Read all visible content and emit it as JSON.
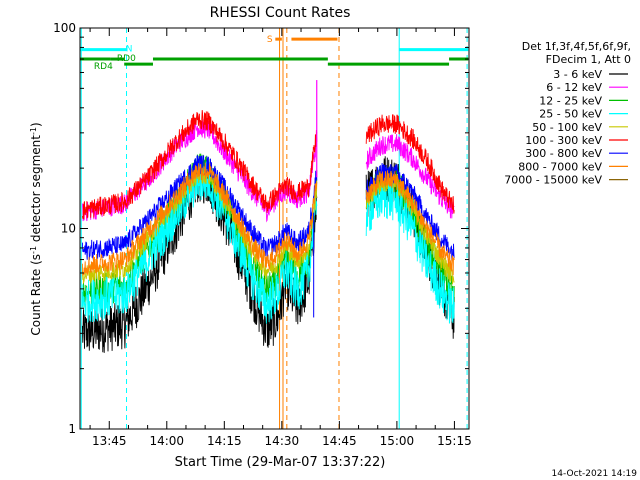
{
  "chart_data": {
    "type": "line",
    "title": "RHESSI Count Rates",
    "xlabel": "Start Time (29-Mar-07 13:37:22)",
    "ylabel": "Count Rate (s⁻¹ detector segment⁻¹)",
    "ylabel_main": "Count Rate (s",
    "ylabel_sup1": "-1",
    "ylabel_mid": " detector segment",
    "ylabel_sup2": "-1",
    "ylabel_end": ")",
    "y_scale": "log",
    "ylim": [
      1,
      100
    ],
    "xlim_minutes": [
      37.37,
      138.8
    ],
    "x_ticks": [
      {
        "label": "13:45",
        "minutes": 45
      },
      {
        "label": "14:00",
        "minutes": 60
      },
      {
        "label": "14:15",
        "minutes": 75
      },
      {
        "label": "14:30",
        "minutes": 90
      },
      {
        "label": "14:45",
        "minutes": 105
      },
      {
        "label": "15:00",
        "minutes": 120
      },
      {
        "label": "15:15",
        "minutes": 135
      }
    ],
    "y_ticks": [
      {
        "label": "1",
        "value": 1
      },
      {
        "label": "10",
        "value": 10
      },
      {
        "label": "100",
        "value": 100
      }
    ],
    "grid": false,
    "legend_position": "right",
    "legend_header": [
      "Det 1f,3f,4f,5f,6f,9f,",
      "FDecim 1, Att 0"
    ],
    "series": [
      {
        "name": "3 - 6 keV",
        "color": "#000000",
        "knots": [
          [
            38,
            3.0
          ],
          [
            49,
            3.3
          ],
          [
            55,
            5.2
          ],
          [
            62,
            9.6
          ],
          [
            68,
            17.5
          ],
          [
            71,
            17.2
          ],
          [
            76,
            10.2
          ],
          [
            82,
            4.9
          ],
          [
            86,
            3.1
          ],
          [
            89,
            3.6
          ],
          [
            91,
            5.4
          ],
          [
            94,
            4.0
          ],
          [
            97,
            5.5
          ],
          [
            99.2,
            14.0
          ]
        ],
        "knots2": [
          [
            112,
            14.5
          ],
          [
            116,
            18.2
          ],
          [
            120,
            17.5
          ],
          [
            124,
            12.4
          ],
          [
            128,
            7.5
          ],
          [
            132,
            4.9
          ],
          [
            135,
            3.5
          ]
        ]
      },
      {
        "name": "6 - 12 keV",
        "color": "#ff00ff",
        "knots": [
          [
            38,
            12.0
          ],
          [
            49,
            13.3
          ],
          [
            55,
            17.3
          ],
          [
            62,
            25.3
          ],
          [
            68,
            32.0
          ],
          [
            71,
            31.0
          ],
          [
            76,
            22.6
          ],
          [
            82,
            15.5
          ],
          [
            86,
            12.2
          ],
          [
            89,
            14.2
          ],
          [
            91,
            15.5
          ],
          [
            94,
            14.0
          ],
          [
            97,
            15.2
          ],
          [
            99.2,
            28.0
          ]
        ],
        "knots2": [
          [
            112,
            21.7
          ],
          [
            116,
            26.2
          ],
          [
            120,
            26.5
          ],
          [
            124,
            22.5
          ],
          [
            128,
            17.5
          ],
          [
            132,
            13.7
          ],
          [
            135,
            12.0
          ]
        ]
      },
      {
        "name": "12 - 25 keV",
        "color": "#00c000",
        "knots": [
          [
            38,
            4.8
          ],
          [
            49,
            5.2
          ],
          [
            55,
            7.9
          ],
          [
            62,
            12.6
          ],
          [
            68,
            20.0
          ],
          [
            71,
            19.8
          ],
          [
            76,
            12.6
          ],
          [
            82,
            6.7
          ],
          [
            86,
            4.9
          ],
          [
            89,
            5.6
          ],
          [
            91,
            7.4
          ],
          [
            94,
            5.8
          ],
          [
            97,
            7.0
          ],
          [
            99.2,
            17.0
          ]
        ],
        "knots2": [
          [
            112,
            13.6
          ],
          [
            116,
            17.3
          ],
          [
            120,
            16.8
          ],
          [
            124,
            12.2
          ],
          [
            128,
            8.2
          ],
          [
            132,
            5.8
          ],
          [
            135,
            4.7
          ]
        ]
      },
      {
        "name": "25 - 50 keV",
        "color": "#00ffff",
        "knots": [
          [
            38,
            4.3
          ],
          [
            49,
            4.7
          ],
          [
            55,
            7.1
          ],
          [
            62,
            11.5
          ],
          [
            68,
            17.4
          ],
          [
            71,
            17.2
          ],
          [
            76,
            11.0
          ],
          [
            82,
            5.8
          ],
          [
            86,
            4.2
          ],
          [
            89,
            4.8
          ],
          [
            91,
            6.3
          ],
          [
            94,
            4.9
          ],
          [
            97,
            6.1
          ],
          [
            99.2,
            15.5
          ]
        ],
        "knots2": [
          [
            112,
            11.5
          ],
          [
            116,
            14.4
          ],
          [
            120,
            13.8
          ],
          [
            124,
            10.0
          ],
          [
            128,
            6.6
          ],
          [
            132,
            4.7
          ],
          [
            135,
            3.9
          ]
        ]
      },
      {
        "name": "50 - 100 keV",
        "color": "#c8c800",
        "knots": [
          [
            38,
            5.9
          ],
          [
            49,
            6.3
          ],
          [
            55,
            9.0
          ],
          [
            62,
            13.3
          ],
          [
            68,
            18.8
          ],
          [
            71,
            18.5
          ],
          [
            76,
            13.0
          ],
          [
            82,
            7.9
          ],
          [
            86,
            6.2
          ],
          [
            89,
            6.8
          ],
          [
            91,
            8.2
          ],
          [
            94,
            6.9
          ],
          [
            97,
            8.0
          ],
          [
            99.2,
            16.5
          ]
        ],
        "knots2": [
          [
            112,
            14.0
          ],
          [
            116,
            17.0
          ],
          [
            120,
            16.8
          ],
          [
            124,
            12.8
          ],
          [
            128,
            9.0
          ],
          [
            132,
            6.7
          ],
          [
            135,
            5.7
          ]
        ]
      },
      {
        "name": "100 - 300 keV",
        "color": "#ff0000",
        "knots": [
          [
            38,
            12.3
          ],
          [
            49,
            13.6
          ],
          [
            55,
            17.8
          ],
          [
            62,
            26.6
          ],
          [
            68,
            35.2
          ],
          [
            71,
            34.1
          ],
          [
            76,
            25.4
          ],
          [
            82,
            17.0
          ],
          [
            86,
            13.1
          ],
          [
            89,
            15.0
          ],
          [
            91,
            16.4
          ],
          [
            94,
            15.0
          ],
          [
            97,
            16.2
          ],
          [
            99.2,
            30.0
          ]
        ],
        "knots2": [
          [
            112,
            28.6
          ],
          [
            116,
            33.2
          ],
          [
            120,
            33.2
          ],
          [
            124,
            28.2
          ],
          [
            128,
            21.6
          ],
          [
            132,
            15.3
          ],
          [
            135,
            12.7
          ]
        ]
      },
      {
        "name": "300 - 800 keV",
        "color": "#0000ff",
        "knots": [
          [
            38,
            7.7
          ],
          [
            49,
            8.3
          ],
          [
            55,
            11.0
          ],
          [
            62,
            15.6
          ],
          [
            68,
            21.0
          ],
          [
            71,
            20.6
          ],
          [
            76,
            15.0
          ],
          [
            82,
            9.8
          ],
          [
            86,
            7.8
          ],
          [
            89,
            8.6
          ],
          [
            91,
            9.8
          ],
          [
            94,
            8.4
          ],
          [
            97,
            9.6
          ],
          [
            99.2,
            20.0
          ]
        ],
        "knots2": [
          [
            112,
            15.6
          ],
          [
            116,
            19.0
          ],
          [
            120,
            18.8
          ],
          [
            124,
            15.2
          ],
          [
            128,
            11.2
          ],
          [
            132,
            8.7
          ],
          [
            135,
            7.5
          ]
        ]
      },
      {
        "name": "800 - 7000 keV",
        "color": "#ff8000",
        "knots": [
          [
            38,
            6.5
          ],
          [
            49,
            7.0
          ],
          [
            55,
            9.7
          ],
          [
            62,
            14.1
          ],
          [
            68,
            19.6
          ],
          [
            71,
            19.3
          ],
          [
            76,
            13.7
          ],
          [
            82,
            8.4
          ],
          [
            86,
            6.7
          ],
          [
            89,
            7.6
          ],
          [
            91,
            8.9
          ],
          [
            94,
            7.4
          ],
          [
            97,
            8.7
          ],
          [
            99.2,
            18.0
          ]
        ],
        "knots2": [
          [
            112,
            14.6
          ],
          [
            116,
            17.6
          ],
          [
            120,
            17.4
          ],
          [
            124,
            13.5
          ],
          [
            128,
            9.9
          ],
          [
            132,
            7.5
          ],
          [
            135,
            6.4
          ]
        ]
      },
      {
        "name": "7000 - 15000 keV",
        "color": "#8b6508",
        "knots": [],
        "knots2": []
      }
    ],
    "attenuator_bars": [
      {
        "label": "N",
        "color": "#00ffff",
        "level": 78,
        "segments": [
          [
            37.5,
            49.4
          ],
          [
            120.6,
            138.6
          ]
        ]
      },
      {
        "label": "RD0",
        "color": "#00a000",
        "level": 70,
        "segments": [
          [
            37.5,
            45.3
          ],
          [
            45.3,
            48.9
          ],
          [
            56.4,
            102.0
          ],
          [
            133.6,
            138.6
          ]
        ]
      },
      {
        "label": "RD4",
        "color": "#00a000",
        "level": 66,
        "segments": [
          [
            48.9,
            56.4
          ],
          [
            102.0,
            133.6
          ]
        ]
      },
      {
        "label": "S",
        "color": "#ff8000",
        "level": 88,
        "segments": [
          [
            88.3,
            90.0
          ],
          [
            92.5,
            104.5
          ]
        ]
      }
    ],
    "vertical_markers": [
      {
        "minutes": 37.7,
        "color": "#00ffff",
        "style": "solid"
      },
      {
        "minutes": 49.5,
        "color": "#00ffff",
        "style": "dashed"
      },
      {
        "minutes": 120.6,
        "color": "#00ffff",
        "style": "solid"
      },
      {
        "minutes": 138.3,
        "color": "#00ffff",
        "style": "dashed"
      },
      {
        "minutes": 89.4,
        "color": "#ff8000",
        "style": "solid"
      },
      {
        "minutes": 90.3,
        "color": "#ff8000",
        "style": "solid"
      },
      {
        "minutes": 91.3,
        "color": "#ff8000",
        "style": "dashed"
      },
      {
        "minutes": 104.9,
        "color": "#ff8000",
        "style": "dashed"
      }
    ],
    "footer_timestamp": "14-Oct-2021 14:19"
  }
}
